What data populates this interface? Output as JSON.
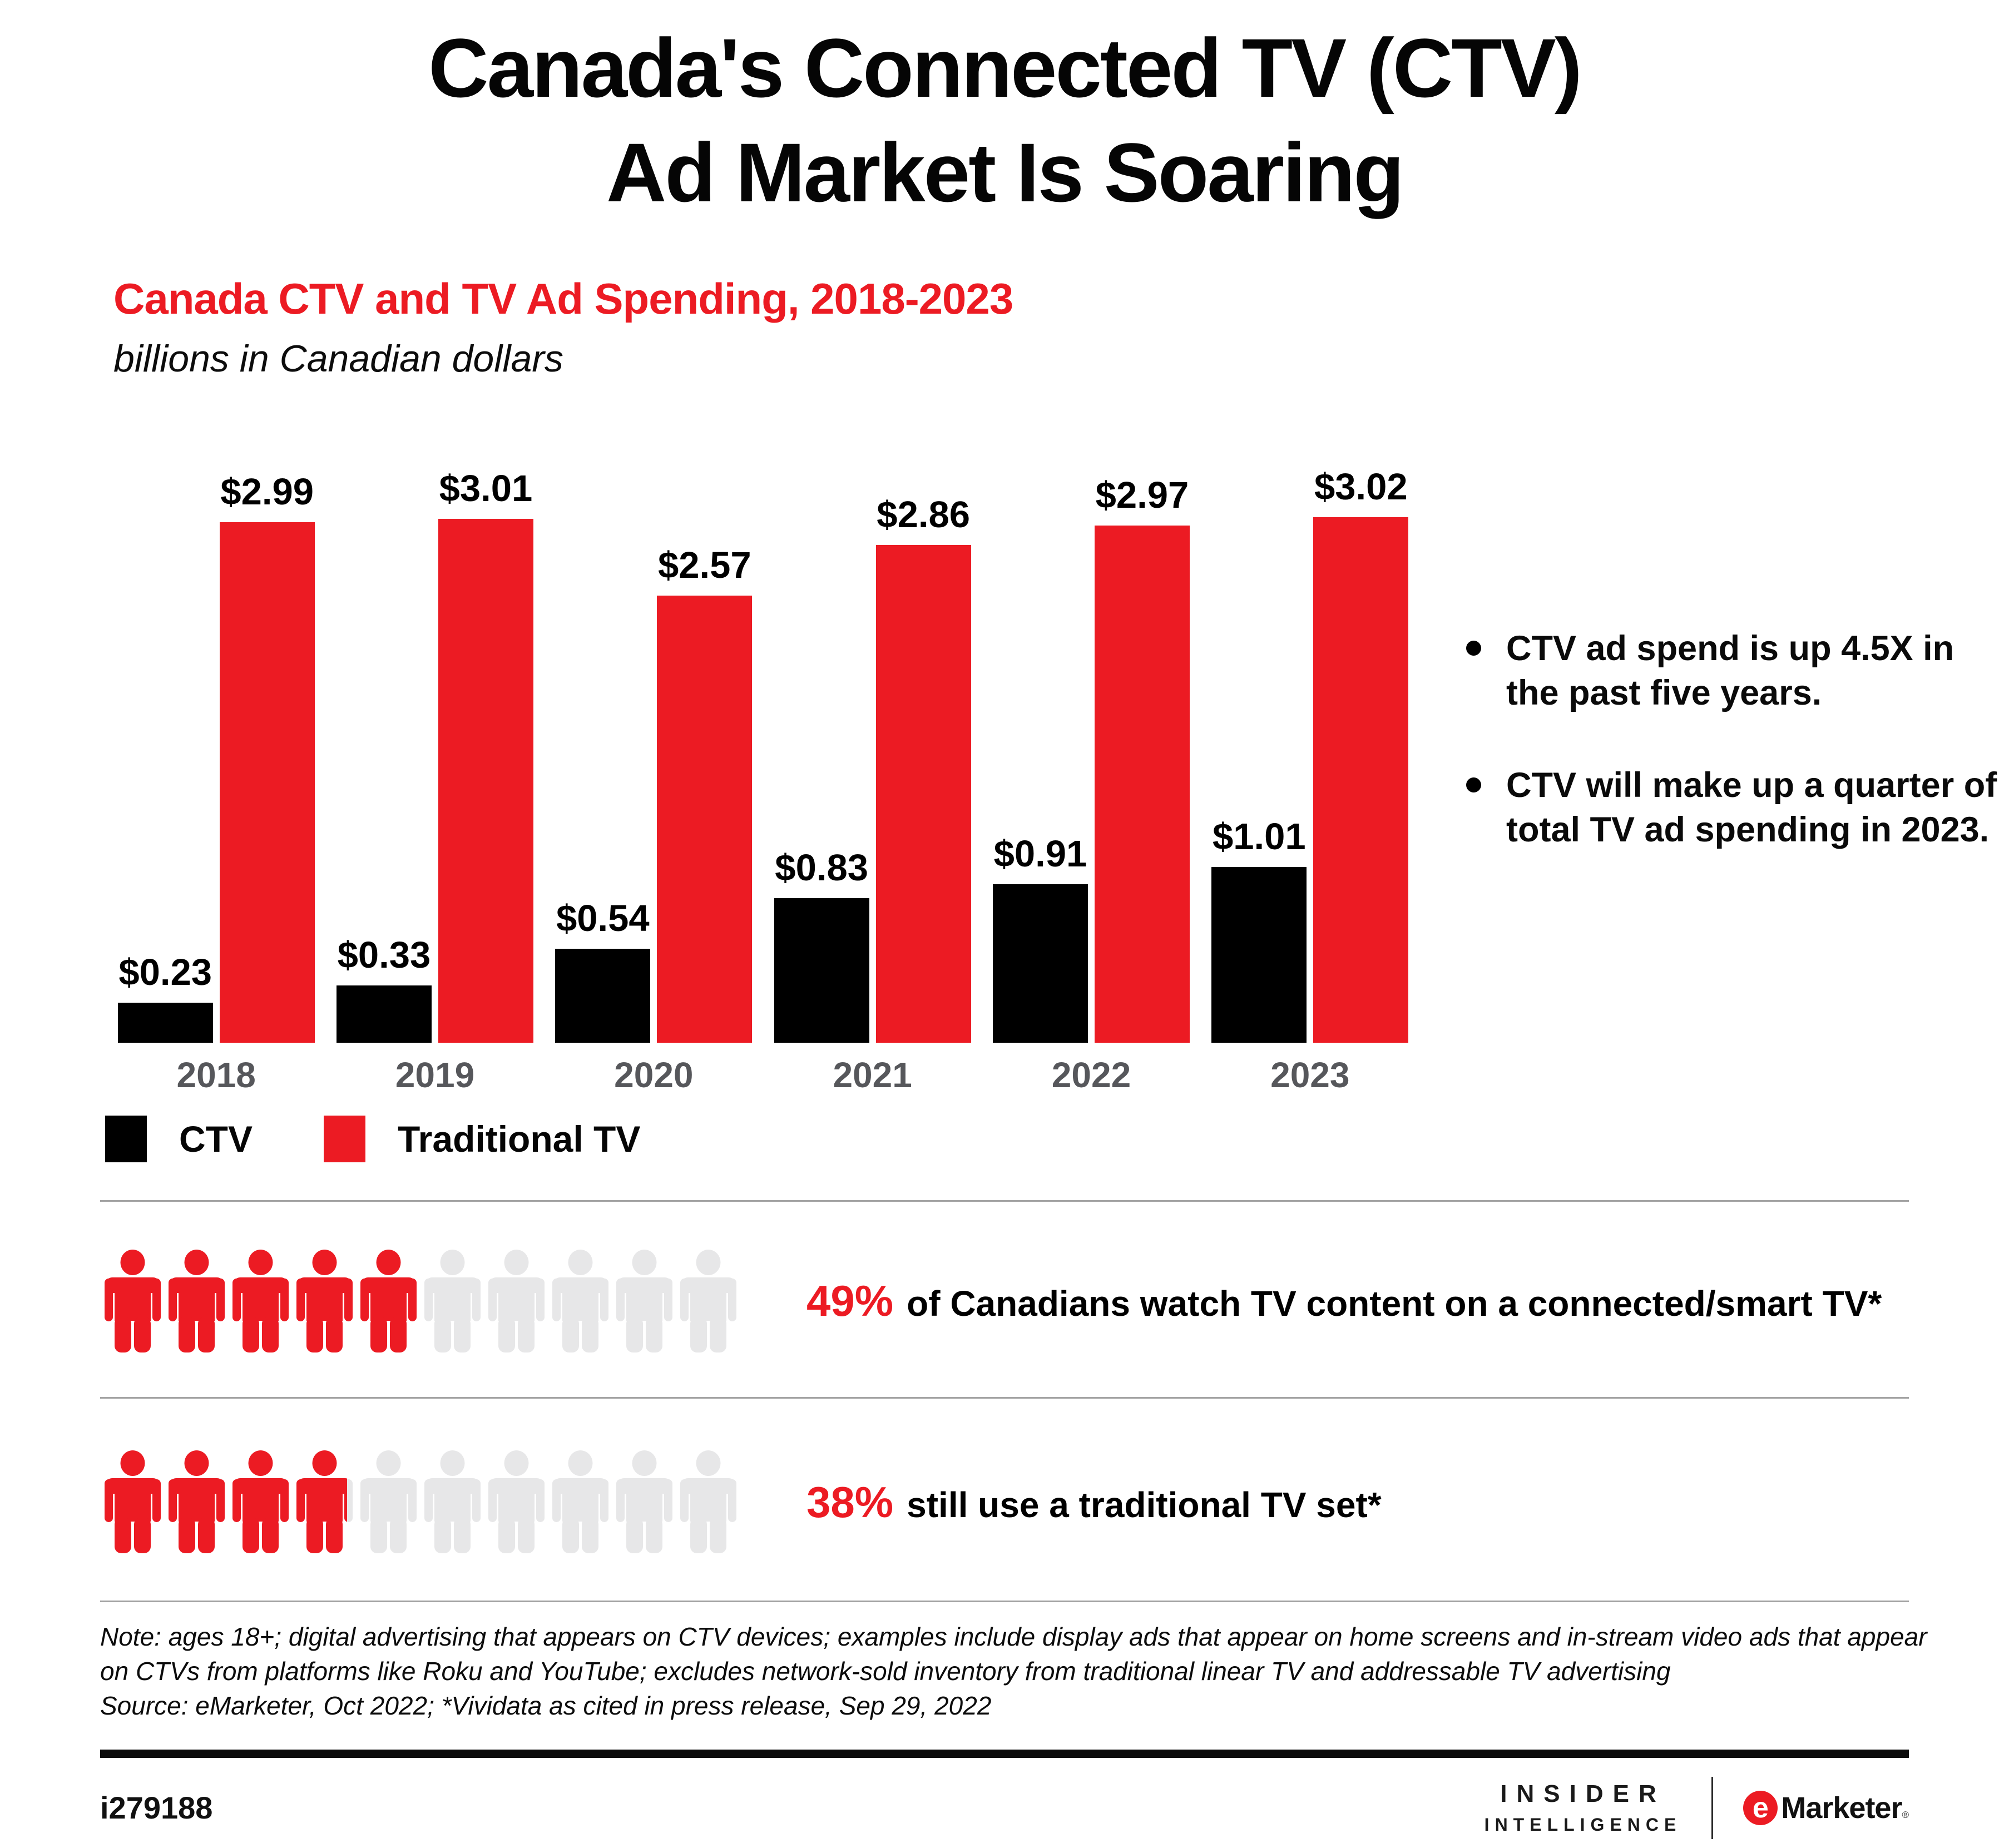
{
  "header": {
    "title_line1": "Canada's Connected TV (CTV)",
    "title_line2": "Ad Market Is Soaring"
  },
  "chart_data": {
    "type": "bar",
    "title": "Canada CTV and TV Ad Spending, 2018-2023",
    "subtitle": "billions in Canadian dollars",
    "categories": [
      "2018",
      "2019",
      "2020",
      "2021",
      "2022",
      "2023"
    ],
    "series": [
      {
        "name": "CTV",
        "color": "#000000",
        "values": [
          0.23,
          0.33,
          0.54,
          0.83,
          0.91,
          1.01
        ]
      },
      {
        "name": "Traditional TV",
        "color": "#ec1b23",
        "values": [
          2.99,
          3.01,
          2.57,
          2.86,
          2.97,
          3.02
        ]
      }
    ],
    "value_prefix": "$",
    "xlabel": "",
    "ylabel": "",
    "ylim": [
      0,
      3.2
    ],
    "grid": false,
    "legend_position": "bottom",
    "value_labels_shown": true
  },
  "bullets": [
    {
      "lines": [
        "CTV ad spend is up 4.5X in",
        "the past five years."
      ]
    },
    {
      "lines": [
        "CTV will make up a quarter of",
        "total TV ad spending in 2023."
      ]
    }
  ],
  "stats": [
    {
      "percent_label": "49%",
      "percent": 49,
      "text": "of Canadians watch TV content on a connected/smart TV*"
    },
    {
      "percent_label": "38%",
      "percent": 38,
      "text": "still use a traditional TV set*"
    }
  ],
  "pictogram": {
    "total_icons": 10,
    "active_color": "#ec1b23",
    "inactive_color": "#e7e7e8"
  },
  "note": {
    "text": "Note: ages 18+; digital advertising that appears on CTV devices; examples include display ads that appear on home screens and in-stream video ads that appear on CTVs from platforms like Roku and YouTube; excludes network-sold inventory from traditional linear TV and addressable TV advertising",
    "source": "Source: eMarketer, Oct 2022; *Vividata as cited in press release, Sep 29, 2022"
  },
  "footer": {
    "id": "i279188",
    "insider_line1": "INSIDER",
    "insider_line2": "INTELLIGENCE",
    "emarketer_e": "e",
    "emarketer_name": "Marketer",
    "registered": "®"
  },
  "colors": {
    "accent_red": "#ec1b23",
    "axis_label_gray": "#56575b",
    "divider_gray": "#a3a3a3"
  }
}
